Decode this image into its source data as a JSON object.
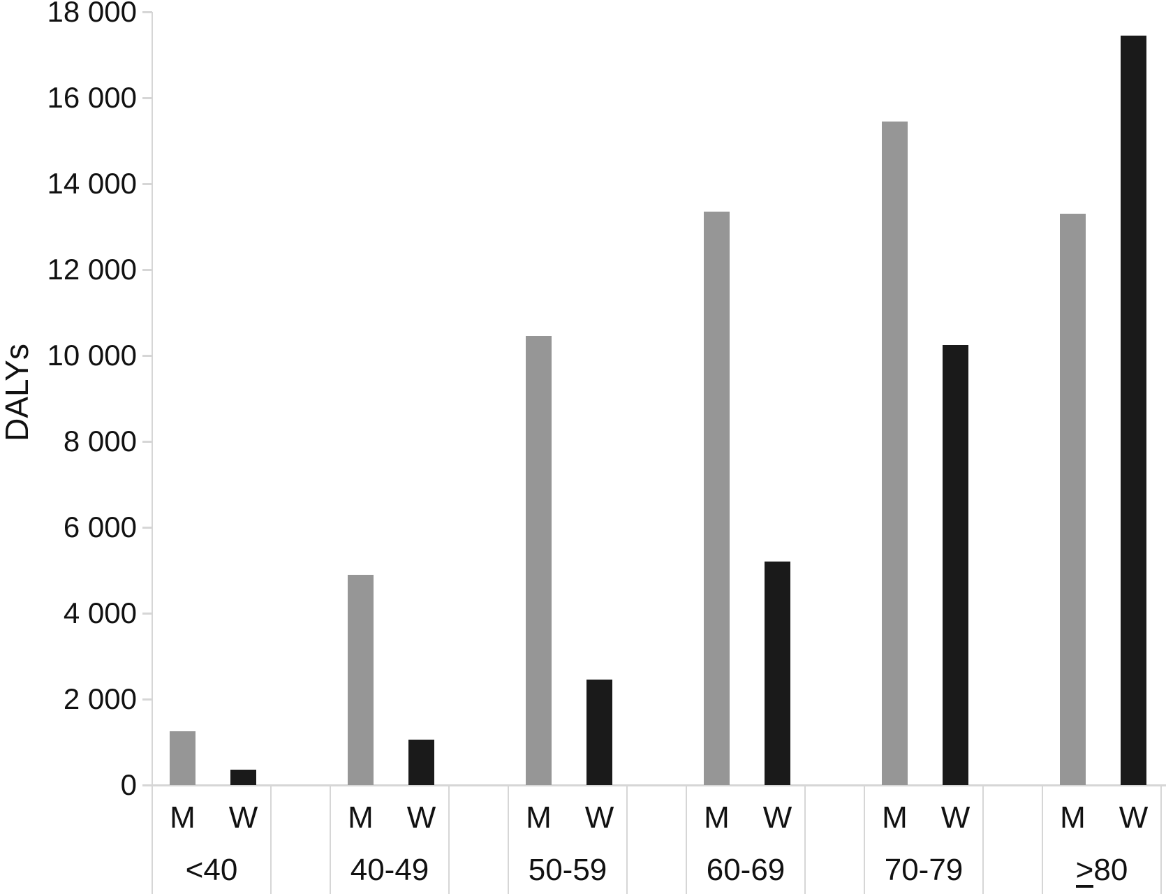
{
  "chart_data": {
    "type": "bar",
    "title": "",
    "xlabel": "",
    "ylabel": "DALYs",
    "ylim": [
      0,
      18000
    ],
    "ytick_step": 2000,
    "ytick_labels": [
      "0",
      "2 000",
      "4 000",
      "6 000",
      "8 000",
      "10 000",
      "12 000",
      "14 000",
      "16 000",
      "18 000"
    ],
    "categories": [
      "<40",
      "40-49",
      "50-59",
      "60-69",
      "70-79",
      "≥80"
    ],
    "bar_sublabels": [
      "M",
      "W"
    ],
    "series": [
      {
        "name": "M",
        "color": "#969696",
        "values": [
          1250,
          4900,
          10450,
          13350,
          15450,
          13300
        ]
      },
      {
        "name": "W",
        "color": "#1a1a1a",
        "values": [
          350,
          1050,
          2450,
          5200,
          10250,
          17450
        ]
      }
    ],
    "legend": "none",
    "grid": "off",
    "axis_color": "#d6d6d6",
    "text_color": "#111111"
  }
}
